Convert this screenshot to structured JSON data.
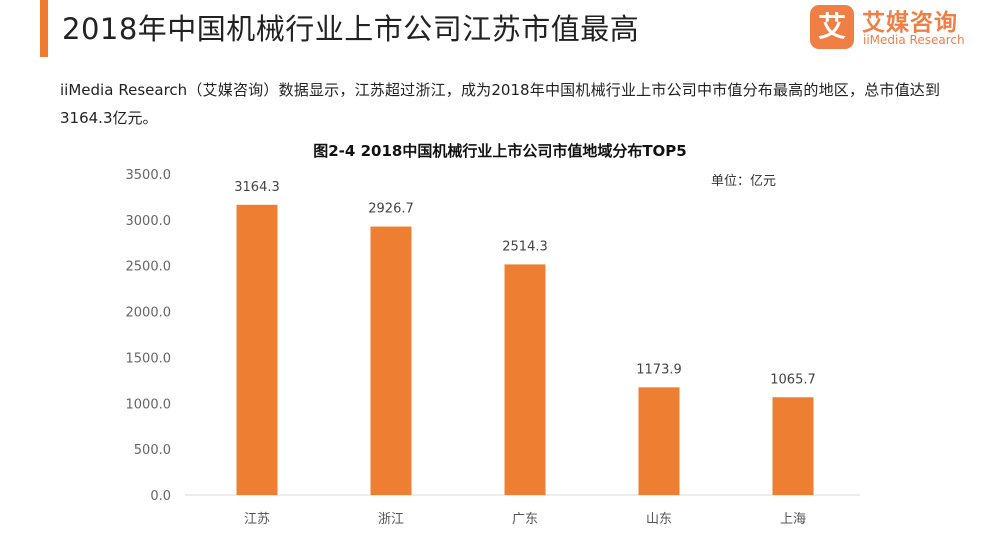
{
  "header": {
    "title": "2018年中国机械行业上市公司江苏市值最高",
    "accent_color": "#ee7b30"
  },
  "logo": {
    "mark": "艾",
    "name_cn": "艾媒咨询",
    "name_en": "iiMedia Research",
    "color": "#ef7f45"
  },
  "description": "iiMedia Research（艾媒咨询）数据显示，江苏超过浙江，成为2018年中国机械行业上市公司中市值分布最高的地区，总市值达到3164.3亿元。",
  "chart_data": {
    "type": "bar",
    "title": "图2-4 2018中国机械行业上市公司市值地域分布TOP5",
    "unit": "单位：亿元",
    "categories": [
      "江苏",
      "浙江",
      "广东",
      "山东",
      "上海"
    ],
    "values": [
      3164.3,
      2926.7,
      2514.3,
      1173.9,
      1065.7
    ],
    "value_labels": [
      "3164.3",
      "2926.7",
      "2514.3",
      "1173.9",
      "1065.7"
    ],
    "yticks": [
      "0.0",
      "500.0",
      "1000.0",
      "1500.0",
      "2000.0",
      "2500.0",
      "3000.0",
      "3500.0"
    ],
    "ylim": [
      0,
      3500
    ],
    "bar_color": "#ee7f32",
    "grid": false,
    "legend": "none"
  }
}
